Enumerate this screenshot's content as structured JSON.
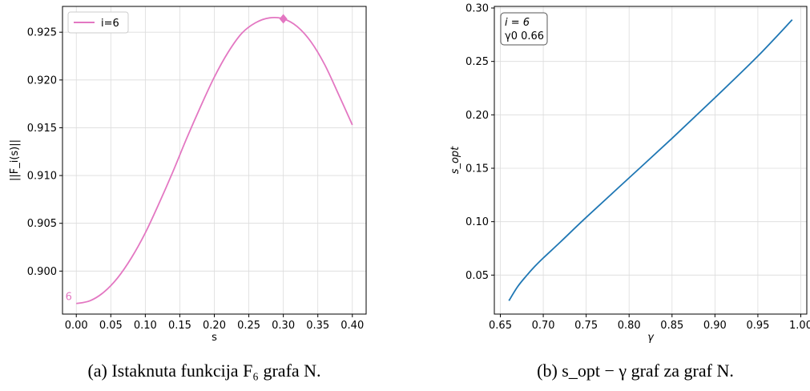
{
  "colors": {
    "pink": "#e377c2",
    "blue": "#1f77b4",
    "grid": "#dcdcdc"
  },
  "captions": {
    "a": "(a) Istaknuta funkcija F₆ grafa N.",
    "b": "(b) s_opt − γ graf za graf N."
  },
  "chart_data": [
    {
      "type": "line",
      "title": "",
      "xlabel": "s",
      "ylabel": "||F_i(s)||",
      "xlim": [
        -0.02,
        0.42
      ],
      "ylim": [
        0.8955,
        0.9277
      ],
      "x_ticks": [
        0.0,
        0.05,
        0.1,
        0.15,
        0.2,
        0.25,
        0.3,
        0.35,
        0.4
      ],
      "x_tick_labels": [
        "0.00",
        "0.05",
        "0.10",
        "0.15",
        "0.20",
        "0.25",
        "0.30",
        "0.35",
        "0.40"
      ],
      "y_ticks": [
        0.9,
        0.905,
        0.91,
        0.915,
        0.92,
        0.925
      ],
      "y_tick_labels": [
        "0.900",
        "0.905",
        "0.910",
        "0.915",
        "0.920",
        "0.925"
      ],
      "grid": true,
      "legend": {
        "position": "top-left",
        "entries": [
          "i=6"
        ]
      },
      "series": [
        {
          "name": "i=6",
          "color": "#e377c2",
          "x": [
            0.0,
            0.02,
            0.04,
            0.06,
            0.08,
            0.1,
            0.12,
            0.14,
            0.16,
            0.18,
            0.2,
            0.22,
            0.24,
            0.26,
            0.28,
            0.3,
            0.32,
            0.34,
            0.36,
            0.38,
            0.4
          ],
          "y": [
            0.8966,
            0.8969,
            0.8978,
            0.8993,
            0.9014,
            0.904,
            0.9071,
            0.9104,
            0.9139,
            0.9172,
            0.9203,
            0.9229,
            0.9249,
            0.926,
            0.9265,
            0.9264,
            0.9256,
            0.924,
            0.9216,
            0.9185,
            0.9153
          ]
        }
      ],
      "marker": {
        "x": 0.3,
        "y": 0.9264,
        "shape": "diamond"
      },
      "annotations": [
        {
          "text": "6",
          "x": -0.011,
          "y": 0.8973
        }
      ]
    },
    {
      "type": "line",
      "title": "",
      "xlabel": "γ",
      "ylabel": "s_opt",
      "xlim": [
        0.643,
        1.007
      ],
      "ylim": [
        0.0135,
        0.3015
      ],
      "x_ticks": [
        0.65,
        0.7,
        0.75,
        0.8,
        0.85,
        0.9,
        0.95,
        1.0
      ],
      "x_tick_labels": [
        "0.65",
        "0.70",
        "0.75",
        "0.80",
        "0.85",
        "0.90",
        "0.95",
        "1.00"
      ],
      "y_ticks": [
        0.05,
        0.1,
        0.15,
        0.2,
        0.25,
        0.3
      ],
      "y_tick_labels": [
        "0.05",
        "0.10",
        "0.15",
        "0.20",
        "0.25",
        "0.30"
      ],
      "grid": true,
      "textbox": {
        "position": "top-left",
        "lines": [
          "i = 6",
          "γ0 0.66"
        ]
      },
      "series": [
        {
          "color": "#1f77b4",
          "x": [
            0.66,
            0.67,
            0.68,
            0.69,
            0.7,
            0.72,
            0.75,
            0.8,
            0.85,
            0.9,
            0.95,
            0.99
          ],
          "y": [
            0.026,
            0.039,
            0.049,
            0.058,
            0.066,
            0.081,
            0.104,
            0.141,
            0.178,
            0.216,
            0.255,
            0.289
          ]
        }
      ]
    }
  ]
}
